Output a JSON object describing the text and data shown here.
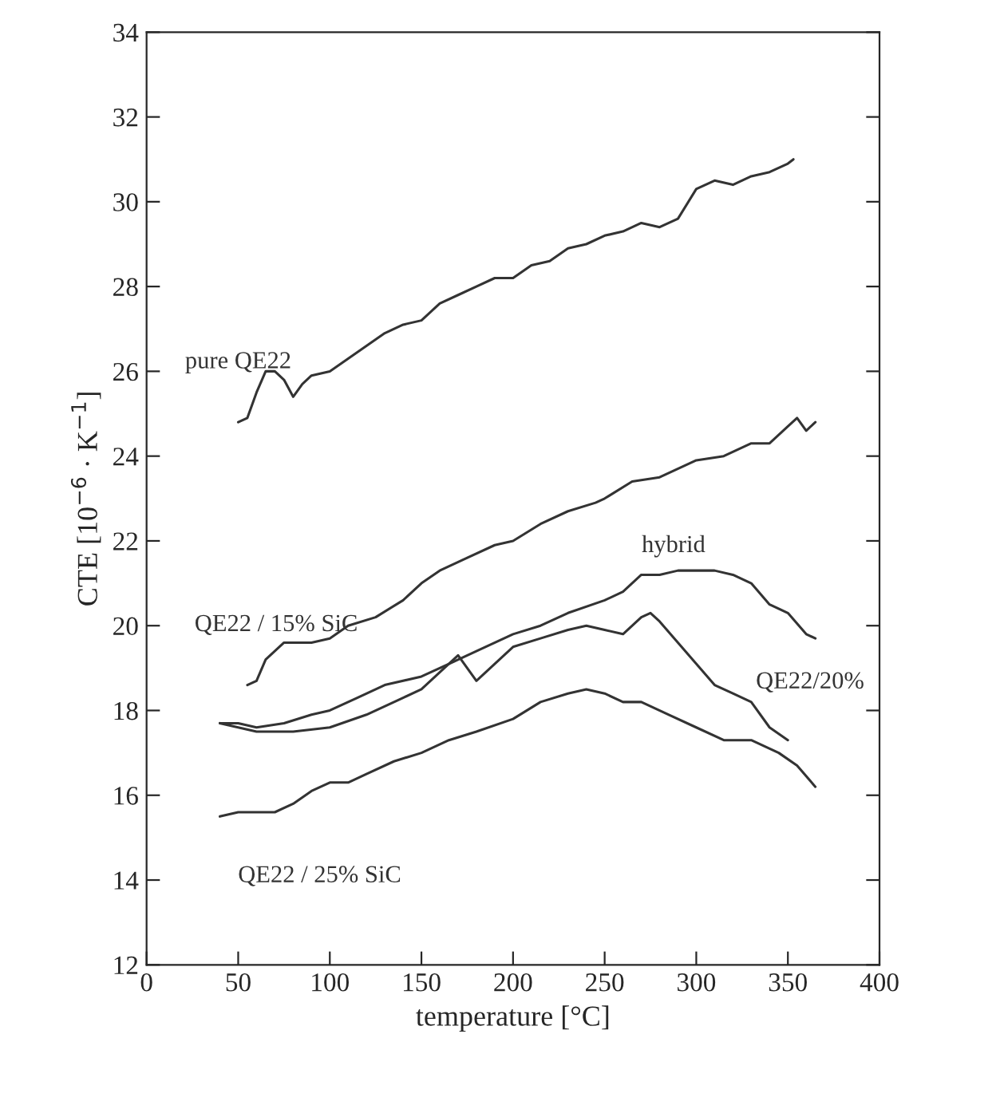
{
  "chart_data": {
    "type": "line",
    "xlabel": "temperature [°C]",
    "ylabel": "CTE [10$^{−6}$ · K$^{−1}$]",
    "xlim": [
      0,
      400
    ],
    "xticks": [
      0,
      50,
      100,
      150,
      200,
      250,
      300,
      350,
      400
    ],
    "ylim": [
      12,
      34
    ],
    "yticks": [
      12,
      14,
      16,
      18,
      20,
      22,
      24,
      26,
      28,
      30,
      32,
      34
    ],
    "grid": false,
    "legend": false,
    "series": [
      {
        "name": "pure QE22",
        "color": "#333333",
        "x": [
          50,
          55,
          60,
          65,
          70,
          75,
          80,
          85,
          90,
          100,
          110,
          120,
          130,
          140,
          150,
          160,
          170,
          180,
          190,
          200,
          210,
          220,
          230,
          240,
          250,
          260,
          270,
          280,
          290,
          300,
          310,
          320,
          330,
          340,
          350,
          353
        ],
        "values": [
          24.8,
          24.9,
          25.5,
          26.0,
          26.0,
          25.8,
          25.4,
          25.7,
          25.9,
          26.0,
          26.3,
          26.6,
          26.9,
          27.1,
          27.2,
          27.6,
          27.8,
          28.0,
          28.2,
          28.2,
          28.5,
          28.6,
          28.9,
          29.0,
          29.2,
          29.3,
          29.5,
          29.4,
          29.6,
          30.3,
          30.5,
          30.4,
          30.6,
          30.7,
          30.9,
          31.0
        ]
      },
      {
        "name": "QE22 / 15% SiC",
        "color": "#333333",
        "x": [
          55,
          60,
          65,
          75,
          90,
          100,
          110,
          125,
          140,
          150,
          160,
          175,
          190,
          200,
          215,
          230,
          245,
          250,
          265,
          280,
          300,
          315,
          330,
          340,
          350,
          355,
          360,
          365
        ],
        "values": [
          18.6,
          18.7,
          19.2,
          19.6,
          19.6,
          19.7,
          20.0,
          20.2,
          20.6,
          21.0,
          21.3,
          21.6,
          21.9,
          22.0,
          22.4,
          22.7,
          22.9,
          23.0,
          23.4,
          23.5,
          23.9,
          24.0,
          24.3,
          24.3,
          24.7,
          24.9,
          24.6,
          24.8
        ]
      },
      {
        "name": "hybrid",
        "color": "#333333",
        "x": [
          40,
          50,
          60,
          75,
          90,
          100,
          115,
          130,
          150,
          165,
          180,
          200,
          215,
          230,
          250,
          260,
          270,
          280,
          290,
          300,
          310,
          320,
          330,
          340,
          350,
          360,
          365
        ],
        "values": [
          17.7,
          17.7,
          17.6,
          17.7,
          17.9,
          18.0,
          18.3,
          18.6,
          18.8,
          19.1,
          19.4,
          19.8,
          20.0,
          20.3,
          20.6,
          20.8,
          21.2,
          21.2,
          21.3,
          21.3,
          21.3,
          21.2,
          21.0,
          20.5,
          20.3,
          19.8,
          19.7
        ]
      },
      {
        "name": "QE22/20%",
        "color": "#333333",
        "x": [
          40,
          50,
          60,
          80,
          100,
          120,
          140,
          150,
          160,
          170,
          180,
          190,
          200,
          215,
          230,
          240,
          250,
          260,
          270,
          275,
          280,
          290,
          300,
          310,
          320,
          330,
          340,
          350
        ],
        "values": [
          17.7,
          17.6,
          17.5,
          17.5,
          17.6,
          17.9,
          18.3,
          18.5,
          18.9,
          19.3,
          18.7,
          19.1,
          19.5,
          19.7,
          19.9,
          20.0,
          19.9,
          19.8,
          20.2,
          20.3,
          20.1,
          19.6,
          19.1,
          18.6,
          18.4,
          18.2,
          17.6,
          17.3
        ]
      },
      {
        "name": "QE22 / 25% SiC",
        "color": "#333333",
        "x": [
          40,
          50,
          60,
          70,
          80,
          90,
          100,
          110,
          120,
          135,
          150,
          165,
          180,
          200,
          215,
          230,
          240,
          250,
          260,
          270,
          285,
          300,
          315,
          330,
          345,
          355,
          365
        ],
        "values": [
          15.5,
          15.6,
          15.6,
          15.6,
          15.8,
          16.1,
          16.3,
          16.3,
          16.5,
          16.8,
          17.0,
          17.3,
          17.5,
          17.8,
          18.2,
          18.4,
          18.5,
          18.4,
          18.2,
          18.2,
          17.9,
          17.6,
          17.3,
          17.3,
          17.0,
          16.7,
          16.2
        ]
      }
    ]
  }
}
